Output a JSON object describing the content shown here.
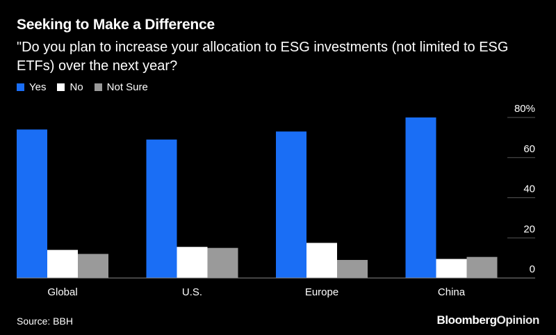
{
  "title": "Seeking to Make a Difference",
  "subtitle": "\"Do you plan to increase your allocation to ESG investments (not limited to ESG ETFs) over the next year?",
  "source": "Source: BBH",
  "brand": {
    "part1": "Bloomberg",
    "part2": "Opinion"
  },
  "colors": {
    "yes": "#1a6ef5",
    "no": "#ffffff",
    "not_sure": "#9a9a9a",
    "background": "#000000",
    "grid": "#555555"
  },
  "chart_data": {
    "type": "bar",
    "categories": [
      "Global",
      "U.S.",
      "Europe",
      "China"
    ],
    "series": [
      {
        "name": "Yes",
        "values": [
          74,
          69,
          73,
          80
        ]
      },
      {
        "name": "No",
        "values": [
          14,
          15.5,
          17.5,
          9.5
        ]
      },
      {
        "name": "Not Sure",
        "values": [
          12,
          15,
          9,
          10.5
        ]
      }
    ],
    "ylim": [
      0,
      80
    ],
    "yticks": [
      0,
      20,
      40,
      60,
      80
    ],
    "ytick_labels": [
      "0",
      "20",
      "40",
      "60",
      "80%"
    ],
    "y_axis_side": "right",
    "legend_position": "top-left",
    "grid": false
  }
}
